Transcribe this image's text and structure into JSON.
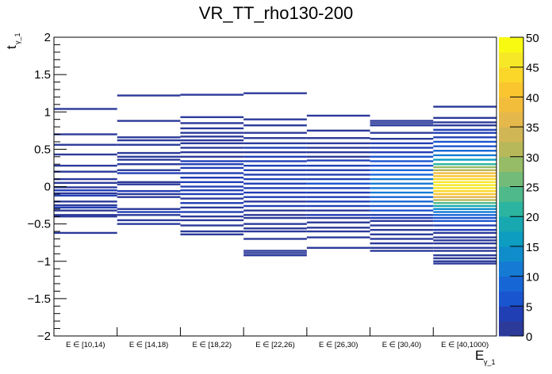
{
  "chart_data": {
    "type": "heatmap",
    "title": "VR_TT_rho130-200",
    "xlabel": "E",
    "xlabel_sub": "γ_1",
    "ylabel": "t",
    "ylabel_sub": "γ_1",
    "ylim": [
      -2,
      2
    ],
    "y_ticks": [
      -2,
      -1.5,
      -1,
      -0.5,
      0,
      0.5,
      1,
      1.5,
      2
    ],
    "y_tick_labels": [
      "−2",
      "−1.5",
      "−1",
      "−0.5",
      "0",
      "0.5",
      "1",
      "1.5",
      "2"
    ],
    "categories": [
      "E ∈ [10,14)",
      "E ∈ [14,18)",
      "E ∈ [18,22)",
      "E ∈ [22,26)",
      "E ∈ [26,30)",
      "E ∈ [30,40)",
      "E ∈ [40,1000)"
    ],
    "zlim": [
      0,
      50
    ],
    "z_ticks": [
      0,
      5,
      10,
      15,
      20,
      25,
      30,
      35,
      40,
      45,
      50
    ],
    "palette_levels": [
      "#2c3a9a",
      "#213fb5",
      "#1a55d0",
      "#1766d6",
      "#147ad3",
      "#0f8dcb",
      "#0c9dc1",
      "#17a8b0",
      "#2bb49f",
      "#4fb98b",
      "#72bb78",
      "#96bc67",
      "#b7b85a",
      "#d0b654",
      "#e5b84c",
      "#f3bd3c",
      "#fac62f",
      "#fbd72a",
      "#f6e827",
      "#f9fa12"
    ],
    "series": [
      {
        "name": "E ∈ [10,14)",
        "cells": [
          [
            1.04,
            1
          ],
          [
            0.7,
            1
          ],
          [
            0.56,
            1
          ],
          [
            0.43,
            2
          ],
          [
            0.28,
            1
          ],
          [
            0.2,
            1
          ],
          [
            0.1,
            2
          ],
          [
            0.05,
            1
          ],
          [
            -0.01,
            2
          ],
          [
            -0.05,
            3
          ],
          [
            -0.09,
            1
          ],
          [
            -0.12,
            3
          ],
          [
            -0.2,
            1
          ],
          [
            -0.25,
            1
          ],
          [
            -0.28,
            3
          ],
          [
            -0.32,
            1
          ],
          [
            -0.38,
            1
          ],
          [
            -0.4,
            2
          ],
          [
            -0.62,
            1
          ]
        ]
      },
      {
        "name": "E ∈ [14,18)",
        "cells": [
          [
            1.22,
            1
          ],
          [
            0.88,
            1
          ],
          [
            0.66,
            1
          ],
          [
            0.62,
            1
          ],
          [
            0.56,
            1
          ],
          [
            0.45,
            1
          ],
          [
            0.4,
            1
          ],
          [
            0.36,
            2
          ],
          [
            0.3,
            2
          ],
          [
            0.22,
            2
          ],
          [
            0.18,
            4
          ],
          [
            0.06,
            2
          ],
          [
            0.03,
            1
          ],
          [
            -0.06,
            3
          ],
          [
            -0.1,
            2
          ],
          [
            -0.14,
            2
          ],
          [
            -0.3,
            2
          ],
          [
            -0.34,
            3
          ],
          [
            -0.38,
            1
          ],
          [
            -0.45,
            1
          ],
          [
            -0.5,
            1
          ]
        ]
      },
      {
        "name": "E ∈ [18,22)",
        "cells": [
          [
            1.23,
            1
          ],
          [
            0.93,
            1
          ],
          [
            0.85,
            1
          ],
          [
            0.78,
            1
          ],
          [
            0.72,
            1
          ],
          [
            0.67,
            1
          ],
          [
            0.62,
            1
          ],
          [
            0.58,
            1
          ],
          [
            0.52,
            2
          ],
          [
            0.46,
            2
          ],
          [
            0.4,
            2
          ],
          [
            0.34,
            3
          ],
          [
            0.3,
            3
          ],
          [
            0.25,
            4
          ],
          [
            0.18,
            3
          ],
          [
            0.12,
            3
          ],
          [
            0.06,
            4
          ],
          [
            0.0,
            3
          ],
          [
            -0.05,
            3
          ],
          [
            -0.1,
            3
          ],
          [
            -0.16,
            2
          ],
          [
            -0.22,
            3
          ],
          [
            -0.28,
            2
          ],
          [
            -0.34,
            3
          ],
          [
            -0.4,
            2
          ],
          [
            -0.45,
            1
          ],
          [
            -0.52,
            1
          ],
          [
            -0.6,
            1
          ],
          [
            -0.64,
            1
          ]
        ]
      },
      {
        "name": "E ∈ [22,26)",
        "cells": [
          [
            1.25,
            1
          ],
          [
            0.9,
            1
          ],
          [
            0.82,
            2
          ],
          [
            0.72,
            1
          ],
          [
            0.65,
            1
          ],
          [
            0.58,
            2
          ],
          [
            0.52,
            3
          ],
          [
            0.46,
            2
          ],
          [
            0.4,
            3
          ],
          [
            0.34,
            3
          ],
          [
            0.28,
            4
          ],
          [
            0.22,
            3
          ],
          [
            0.16,
            3
          ],
          [
            0.1,
            4
          ],
          [
            0.04,
            3
          ],
          [
            -0.02,
            4
          ],
          [
            -0.08,
            3
          ],
          [
            -0.14,
            3
          ],
          [
            -0.2,
            2
          ],
          [
            -0.26,
            3
          ],
          [
            -0.32,
            2
          ],
          [
            -0.38,
            2
          ],
          [
            -0.42,
            1
          ],
          [
            -0.5,
            1
          ],
          [
            -0.56,
            1
          ],
          [
            -0.6,
            1
          ],
          [
            -0.7,
            1
          ],
          [
            -0.86,
            1
          ],
          [
            -0.89,
            1
          ],
          [
            -0.92,
            1
          ]
        ]
      },
      {
        "name": "E ∈ [26,30)",
        "cells": [
          [
            0.95,
            1
          ],
          [
            0.75,
            1
          ],
          [
            0.65,
            1
          ],
          [
            0.58,
            2
          ],
          [
            0.52,
            1
          ],
          [
            0.46,
            2
          ],
          [
            0.4,
            2
          ],
          [
            0.35,
            3
          ],
          [
            0.28,
            3
          ],
          [
            0.22,
            3
          ],
          [
            0.16,
            4
          ],
          [
            0.1,
            4
          ],
          [
            0.04,
            5
          ],
          [
            -0.02,
            4
          ],
          [
            -0.08,
            3
          ],
          [
            -0.14,
            4
          ],
          [
            -0.2,
            3
          ],
          [
            -0.26,
            3
          ],
          [
            -0.32,
            2
          ],
          [
            -0.38,
            3
          ],
          [
            -0.42,
            2
          ],
          [
            -0.48,
            1
          ],
          [
            -0.55,
            1
          ],
          [
            -0.6,
            1
          ],
          [
            -0.68,
            1
          ],
          [
            -0.82,
            1
          ]
        ]
      },
      {
        "name": "E ∈ [30,40)",
        "cells": [
          [
            0.88,
            1
          ],
          [
            0.85,
            1
          ],
          [
            0.82,
            1
          ],
          [
            0.72,
            1
          ],
          [
            0.64,
            2
          ],
          [
            0.58,
            3
          ],
          [
            0.52,
            3
          ],
          [
            0.46,
            4
          ],
          [
            0.4,
            5
          ],
          [
            0.34,
            6
          ],
          [
            0.28,
            7
          ],
          [
            0.22,
            8
          ],
          [
            0.16,
            9
          ],
          [
            0.1,
            10
          ],
          [
            0.04,
            10
          ],
          [
            -0.02,
            11
          ],
          [
            -0.08,
            10
          ],
          [
            -0.14,
            9
          ],
          [
            -0.2,
            8
          ],
          [
            -0.26,
            6
          ],
          [
            -0.32,
            5
          ],
          [
            -0.38,
            4
          ],
          [
            -0.42,
            3
          ],
          [
            -0.46,
            2
          ],
          [
            -0.52,
            2
          ],
          [
            -0.58,
            2
          ],
          [
            -0.64,
            1
          ],
          [
            -0.7,
            1
          ],
          [
            -0.76,
            1
          ],
          [
            -0.82,
            1
          ],
          [
            -0.86,
            1
          ]
        ]
      },
      {
        "name": "E ∈ [40,1000)",
        "cells": [
          [
            1.07,
            2
          ],
          [
            0.92,
            1
          ],
          [
            0.86,
            2
          ],
          [
            0.82,
            2
          ],
          [
            0.76,
            3
          ],
          [
            0.72,
            3
          ],
          [
            0.66,
            4
          ],
          [
            0.6,
            5
          ],
          [
            0.54,
            7
          ],
          [
            0.48,
            9
          ],
          [
            0.42,
            12
          ],
          [
            0.36,
            16
          ],
          [
            0.3,
            22
          ],
          [
            0.26,
            28
          ],
          [
            0.22,
            32
          ],
          [
            0.18,
            38
          ],
          [
            0.14,
            40
          ],
          [
            0.1,
            43
          ],
          [
            0.06,
            45
          ],
          [
            0.02,
            46
          ],
          [
            -0.02,
            45
          ],
          [
            -0.06,
            43
          ],
          [
            -0.1,
            40
          ],
          [
            -0.14,
            36
          ],
          [
            -0.18,
            30
          ],
          [
            -0.22,
            24
          ],
          [
            -0.26,
            18
          ],
          [
            -0.3,
            14
          ],
          [
            -0.34,
            10
          ],
          [
            -0.38,
            8
          ],
          [
            -0.42,
            6
          ],
          [
            -0.46,
            5
          ],
          [
            -0.52,
            4
          ],
          [
            -0.58,
            3
          ],
          [
            -0.62,
            2
          ],
          [
            -0.68,
            1
          ],
          [
            -0.72,
            2
          ],
          [
            -0.76,
            1
          ],
          [
            -0.82,
            1
          ],
          [
            -0.86,
            1
          ],
          [
            -0.92,
            1
          ],
          [
            -0.96,
            1
          ],
          [
            -1.0,
            1
          ],
          [
            -1.03,
            1
          ]
        ]
      }
    ]
  }
}
